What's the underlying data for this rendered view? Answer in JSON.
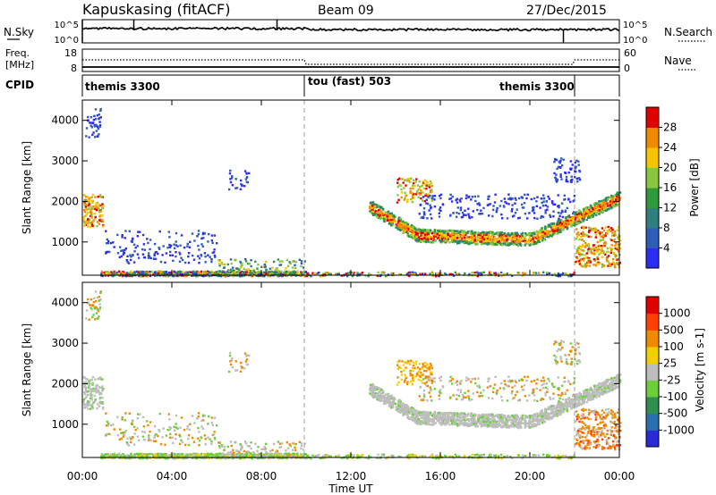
{
  "header": {
    "station": "Kapuskasing (fitACF)",
    "beam": "Beam 09",
    "date": "27/Dec/2015"
  },
  "noise_panel": {
    "left_label": "N.Sky",
    "right_label": "N.Search",
    "left_ticks": [
      "10^5",
      "10^0"
    ],
    "right_ticks": [
      "10^5",
      "10^0"
    ],
    "right_style": "dotted"
  },
  "freq_panel": {
    "left_label_1": "Freq.",
    "left_label_2": "[MHz]",
    "right_label": "Nave",
    "left_ticks": [
      "18",
      "8"
    ],
    "right_ticks": [
      "60",
      "0"
    ],
    "right_style": "dotted"
  },
  "cpid_panel": {
    "label": "CPID",
    "segments": [
      {
        "label": "themis 3300",
        "start_hour": 0,
        "end_hour": 10
      },
      {
        "label": "tou (fast) 503",
        "start_hour": 10,
        "end_hour": 22
      },
      {
        "label": "themis 3300",
        "start_hour": 22,
        "end_hour": 24
      }
    ]
  },
  "chart_data": [
    {
      "type": "heatmap",
      "name": "Power",
      "ylabel": "Slant Range [km]",
      "ylim": [
        180,
        4500
      ],
      "yticks": [
        1000,
        2000,
        3000,
        4000
      ],
      "colorbar_label": "Power [dB]",
      "colorbar_ticks": [
        "4",
        "8",
        "12",
        "16",
        "20",
        "24",
        "28"
      ],
      "colorbar_colors": [
        "#2c2cf5",
        "#2e5db8",
        "#2f7f7f",
        "#2f9a3a",
        "#8cc63f",
        "#f5c400",
        "#f08a00",
        "#e00000"
      ]
    },
    {
      "type": "heatmap",
      "name": "Velocity",
      "ylabel": "Slant Range [km]",
      "ylim": [
        180,
        4500
      ],
      "yticks": [
        1000,
        2000,
        3000,
        4000
      ],
      "colorbar_label": "Velocity [m s-1]",
      "colorbar_ticks": [
        "1000",
        "500",
        "100",
        "25",
        "-25",
        "-100",
        "-500",
        "-1000"
      ],
      "colorbar_colors": [
        "#2a2ad8",
        "#2a6fb0",
        "#2f8f4f",
        "#6ccf3a",
        "#bdbdbd",
        "#f2d000",
        "#f08a00",
        "#ff4000",
        "#e00000"
      ]
    }
  ],
  "time_axis": {
    "label": "Time UT",
    "ticks": [
      "00:00",
      "04:00",
      "08:00",
      "12:00",
      "16:00",
      "20:00",
      "00:00"
    ],
    "range_hours": [
      0,
      24
    ]
  }
}
